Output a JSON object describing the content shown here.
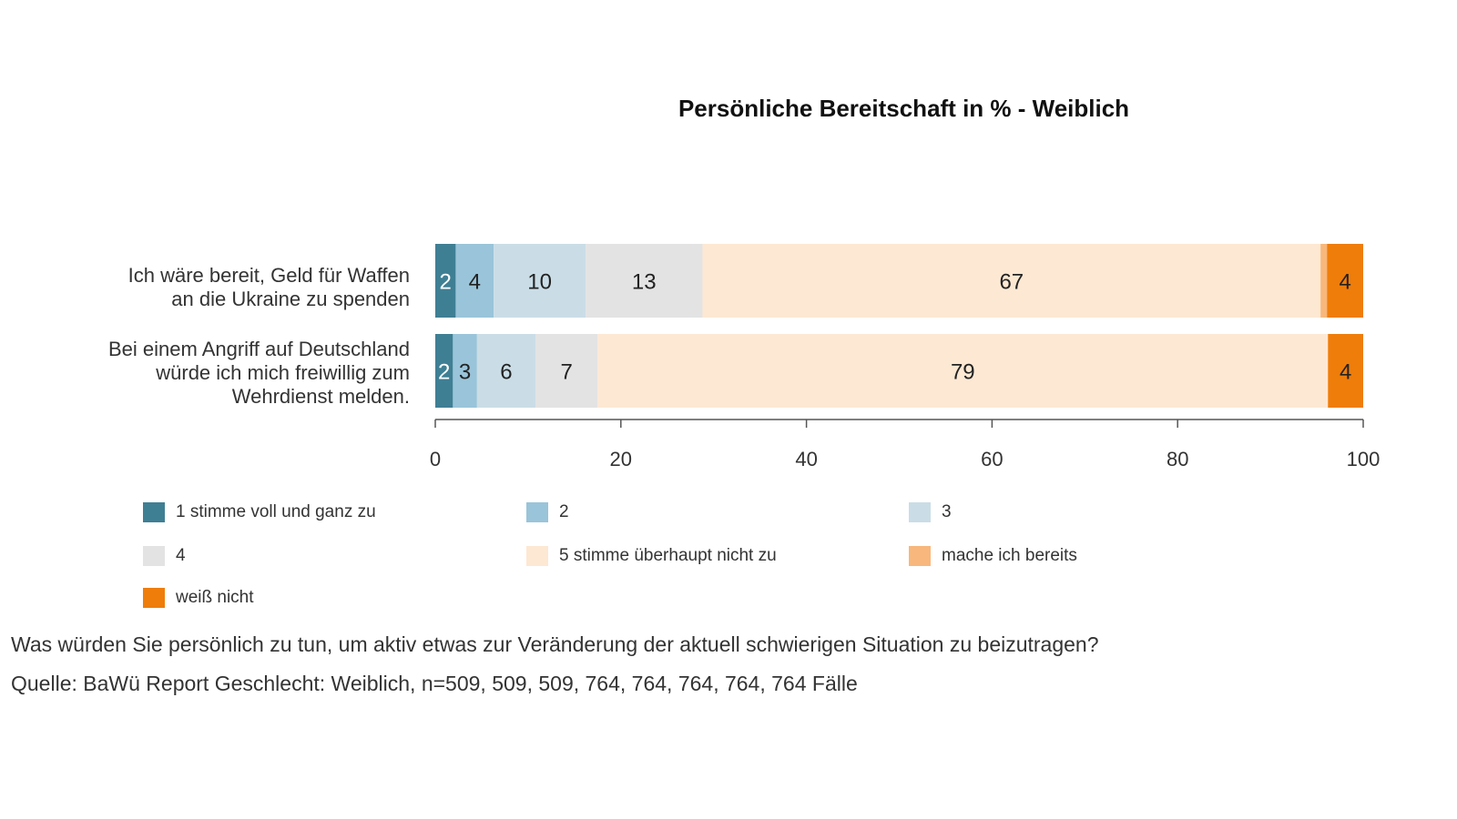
{
  "chart_data": {
    "type": "bar",
    "orientation": "horizontal",
    "stacked": true,
    "title": "Persönliche Bereitschaft in % - Weiblich",
    "categories": [
      [
        "Ich wäre bereit, Geld für Waffen",
        "an die Ukraine zu spenden"
      ],
      [
        "Bei einem Angriff auf Deutschland",
        "würde ich mich freiwillig zum",
        "Wehrdienst melden."
      ]
    ],
    "xlim": [
      0,
      100
    ],
    "xticks": [
      "0",
      "20",
      "40",
      "60",
      "80",
      "100"
    ],
    "grid": false,
    "legend_position": "bottom",
    "series": [
      {
        "name": "1 stimme voll und ganz zu",
        "color": "#3f7f94",
        "values": [
          2.2,
          1.9
        ],
        "labels": [
          "2",
          "2"
        ],
        "label_color": "#ffffff"
      },
      {
        "name": "2",
        "color": "#9ac4d9",
        "values": [
          4.1,
          2.6
        ],
        "labels": [
          "4",
          "3"
        ],
        "label_color": "#222222"
      },
      {
        "name": "3",
        "color": "#cadde6",
        "values": [
          9.9,
          6.3
        ],
        "labels": [
          "10",
          "6"
        ],
        "label_color": "#222222"
      },
      {
        "name": "4",
        "color": "#e3e3e3",
        "values": [
          12.6,
          6.7
        ],
        "labels": [
          "13",
          "7"
        ],
        "label_color": "#222222"
      },
      {
        "name": "5 stimme überhaupt nicht zu",
        "color": "#fde8d3",
        "values": [
          66.6,
          78.7
        ],
        "labels": [
          "67",
          "79"
        ],
        "label_color": "#222222"
      },
      {
        "name": "mache ich bereits",
        "color": "#f8b77c",
        "values": [
          0.7,
          0
        ],
        "labels": [
          "",
          ""
        ],
        "label_color": "#222222"
      },
      {
        "name": "weiß nicht",
        "color": "#ef7d0a",
        "values": [
          3.9,
          3.8
        ],
        "labels": [
          "4",
          "4"
        ],
        "label_color": "#222222"
      }
    ]
  },
  "captions": {
    "question": "Was würden Sie persönlich zu tun, um aktiv etwas zur Veränderung der aktuell schwierigen Situation zu beizutragen?",
    "source": "Quelle: BaWü Report Geschlecht: Weiblich, n=509, 509, 509, 764, 764, 764, 764, 764 Fälle"
  }
}
